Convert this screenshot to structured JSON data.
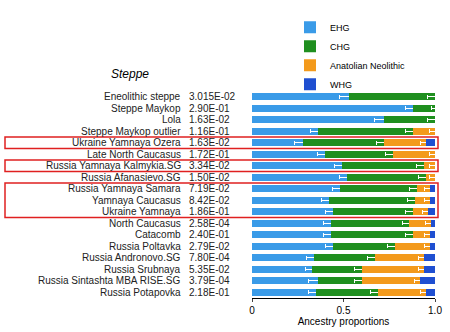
{
  "chart_data": {
    "type": "bar",
    "orientation": "horizontal",
    "stacked": true,
    "title": "Steppe",
    "x_label": "Ancestry proportions",
    "categories": [
      "Eneolithic steppe",
      "Steppe Maykop",
      "Lola",
      "Steppe Maykop outlier",
      "Ukraine Yamnaya Ozera",
      "Late North Caucasus",
      "Russia Yamnaya Kalmykia.SG",
      "Russia Afanasievo.SG",
      "Russia Yamnaya Samara",
      "Yamnaya Caucasus",
      "Ukraine Yamnaya",
      "North Caucasus",
      "Catacomb",
      "Russia Poltavka",
      "Russia Andronovo.SG",
      "Russia Srubnaya",
      "Russia Sintashta MBA RISE.SG",
      "Russia Potapovka"
    ],
    "p_values": [
      0.03015,
      0.29,
      0.0163,
      0.116,
      0.0163,
      0.172,
      0.0334,
      0.015,
      0.0719,
      0.0842,
      0.186,
      0.000258,
      0.24,
      0.0279,
      0.00078,
      0.0535,
      0.000379,
      0.218
    ],
    "p_value_labels": [
      "3.015E-02",
      "2.90E-01",
      "1.63E-02",
      "1.16E-01",
      "1.63E-02",
      "1.72E-01",
      "3.34E-02",
      "1.50E-02",
      "7.19E-02",
      "8.42E-02",
      "1.86E-01",
      "2.58E-04",
      "2.40E-01",
      "2.79E-02",
      "7.80E-04",
      "5.35E-02",
      "3.79E-04",
      "2.18E-01"
    ],
    "series": [
      {
        "name": "EHG",
        "color": "#3a9be8",
        "values": [
          0.53,
          0.88,
          0.72,
          0.36,
          0.28,
          0.4,
          0.49,
          0.52,
          0.48,
          0.42,
          0.44,
          0.43,
          0.43,
          0.44,
          0.34,
          0.33,
          0.36,
          0.35
        ],
        "errors": [
          0.05,
          0.04,
          0.05,
          0.04,
          0.05,
          0.04,
          0.04,
          0.04,
          0.04,
          0.04,
          0.04,
          0.04,
          0.04,
          0.04,
          0.04,
          0.04,
          0.05,
          0.04
        ]
      },
      {
        "name": "CHG",
        "color": "#1f8f1f",
        "values": [
          0.47,
          0.12,
          0.28,
          0.52,
          0.44,
          0.37,
          0.45,
          0.43,
          0.42,
          0.47,
          0.44,
          0.43,
          0.45,
          0.34,
          0.33,
          0.27,
          0.24,
          0.34
        ],
        "errors": [
          0.04,
          0.02,
          0.04,
          0.04,
          0.04,
          0.04,
          0.04,
          0.04,
          0.04,
          0.04,
          0.04,
          0.04,
          0.04,
          0.04,
          0.04,
          0.04,
          0.04,
          0.04
        ]
      },
      {
        "name": "Anatolian Neolithic",
        "color": "#f39a1c",
        "values": [
          0,
          0,
          0,
          0.12,
          0.23,
          0.23,
          0.06,
          0.05,
          0.07,
          0.08,
          0.08,
          0.12,
          0.09,
          0.19,
          0.27,
          0.34,
          0.32,
          0.26
        ],
        "errors": [
          0,
          0,
          0,
          0.03,
          0.03,
          0.03,
          0.03,
          0.03,
          0.03,
          0.03,
          0.03,
          0.03,
          0.03,
          0.03,
          0.03,
          0.03,
          0.03,
          0.03
        ]
      },
      {
        "name": "WHG",
        "color": "#1f4fd1",
        "values": [
          0,
          0,
          0,
          0,
          0.05,
          0,
          0,
          0,
          0.03,
          0.03,
          0.04,
          0.02,
          0.03,
          0.03,
          0.06,
          0.06,
          0.08,
          0.05
        ]
      }
    ],
    "xlim": [
      0,
      1
    ],
    "xticks": [
      0,
      0.5,
      {
        "value": 1,
        "label": "1.0"
      }
    ],
    "grid": false,
    "legend": "top right",
    "highlights": [
      {
        "from": "Ukraine Yamnaya Ozera",
        "to": "Ukraine Yamnaya Ozera",
        "color": "#e02020"
      },
      {
        "from": "Russia Yamnaya Kalmykia.SG",
        "to": "Russia Yamnaya Kalmykia.SG",
        "color": "#e02020"
      },
      {
        "from": "Russia Yamnaya Samara",
        "to": "Ukraine Yamnaya",
        "color": "#e02020"
      }
    ]
  }
}
